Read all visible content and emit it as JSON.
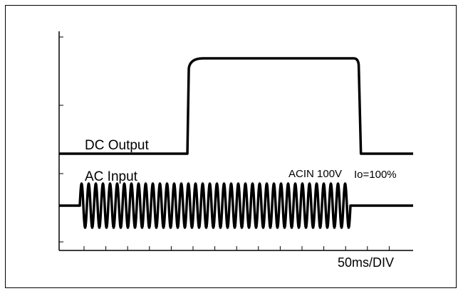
{
  "chart_data": {
    "type": "line",
    "title": "",
    "xlabel": "50ms/DIV",
    "x_unit_ms_per_div": 50,
    "x_divisions": 10,
    "y_divisions": 4,
    "condition_label": "ACIN 100V",
    "load_label": "Io=100%",
    "series": [
      {
        "name": "DC Output",
        "description_points": [
          [
            0,
            0
          ],
          [
            4.42,
            0
          ],
          [
            4.42,
            1
          ],
          [
            10.4,
            1
          ],
          [
            10.4,
            0
          ],
          [
            12.2,
            0
          ]
        ],
        "units": "divisions"
      },
      {
        "name": "AC Input",
        "ac_on_div": 0.7,
        "ac_off_div": 10.0,
        "cycles_per_div": 4.05
      }
    ],
    "colors": {
      "line": "#000000",
      "background": "#ffffff"
    }
  }
}
